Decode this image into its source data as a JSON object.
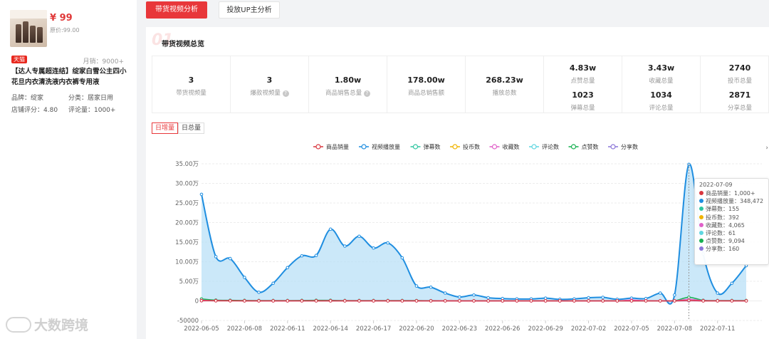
{
  "product": {
    "price": "¥ 99",
    "original_price": "原价:99.00",
    "shop_badge": "天猫",
    "monthly_sales": "月销：9000+",
    "title": "【达人专属超连结】绽家白雪公主四小花旦内衣清洗液内衣裤专用液",
    "brand": "品牌：绽家",
    "category": "分类：居家日用",
    "shop_rating": "店铺评分：4.80",
    "review_count": "评论量：1000+"
  },
  "tabs": [
    {
      "label": "带货视频分析",
      "active": true
    },
    {
      "label": "投放UP主分析",
      "active": false
    }
  ],
  "panel": {
    "section_mark": "01",
    "title": "带货视频总览"
  },
  "stats": [
    {
      "value": "3",
      "label": "带货视频量",
      "help": false
    },
    {
      "value": "3",
      "label": "爆款视频量",
      "help": true
    },
    {
      "value": "1.80w",
      "label": "商品销售总量",
      "help": true
    },
    {
      "value": "178.00w",
      "label": "商品总销售额",
      "help": false
    },
    {
      "value": "268.23w",
      "label": "播放总数",
      "help": false
    }
  ],
  "stats_double": [
    {
      "value1": "4.83w",
      "label1": "点赞总量",
      "value2": "1023",
      "label2": "弹幕总量"
    },
    {
      "value1": "3.43w",
      "label1": "收藏总量",
      "value2": "1034",
      "label2": "评论总量"
    },
    {
      "value1": "2740",
      "label1": "投币总量",
      "value2": "2871",
      "label2": "分享总量"
    }
  ],
  "toggles": {
    "daily": "日增量",
    "total": "日总量"
  },
  "chart_data": {
    "type": "line",
    "legend": [
      {
        "name": "商品销量",
        "color": "#d9363e"
      },
      {
        "name": "视频播放量",
        "color": "#1f8ee0"
      },
      {
        "name": "弹幕数",
        "color": "#2fc5a0"
      },
      {
        "name": "投币数",
        "color": "#f0b400"
      },
      {
        "name": "收藏数",
        "color": "#e060c8"
      },
      {
        "name": "评论数",
        "color": "#5fd6e0"
      },
      {
        "name": "点赞数",
        "color": "#16b050"
      },
      {
        "name": "分享数",
        "color": "#8b76d8"
      }
    ],
    "y_ticks": [
      "35.00万",
      "30.00万",
      "25.00万",
      "20.00万",
      "15.00万",
      "10.00万",
      "5.00万",
      "0",
      "-50000"
    ],
    "ylim": [
      -50000,
      350000
    ],
    "x_tick_labels": [
      "2022-06-05",
      "2022-06-08",
      "2022-06-11",
      "2022-06-14",
      "2022-06-17",
      "2022-06-20",
      "2022-06-23",
      "2022-06-26",
      "2022-06-29",
      "2022-07-02",
      "2022-07-05",
      "2022-07-08",
      "2022-07-11"
    ],
    "x": [
      "2022-06-05",
      "2022-06-06",
      "2022-06-07",
      "2022-06-08",
      "2022-06-09",
      "2022-06-10",
      "2022-06-11",
      "2022-06-12",
      "2022-06-13",
      "2022-06-14",
      "2022-06-15",
      "2022-06-16",
      "2022-06-17",
      "2022-06-18",
      "2022-06-19",
      "2022-06-20",
      "2022-06-21",
      "2022-06-22",
      "2022-06-23",
      "2022-06-24",
      "2022-06-25",
      "2022-06-26",
      "2022-06-27",
      "2022-06-28",
      "2022-06-29",
      "2022-06-30",
      "2022-07-01",
      "2022-07-02",
      "2022-07-03",
      "2022-07-04",
      "2022-07-05",
      "2022-07-06",
      "2022-07-07",
      "2022-07-08",
      "2022-07-09",
      "2022-07-10",
      "2022-07-11",
      "2022-07-12",
      "2022-07-13"
    ],
    "series": [
      {
        "name": "视频播放量",
        "color": "#1f8ee0",
        "fill": true,
        "values": [
          272000,
          113000,
          108000,
          60000,
          22000,
          45000,
          85000,
          115000,
          116000,
          183000,
          140000,
          165000,
          135000,
          148000,
          110000,
          38000,
          35000,
          20000,
          10000,
          15000,
          8000,
          6000,
          5000,
          5000,
          7000,
          4000,
          5000,
          8000,
          9000,
          4000,
          7000,
          6000,
          20000,
          15000,
          348472,
          120000,
          20000,
          45000,
          90000
        ]
      },
      {
        "name": "点赞数",
        "color": "#16b050",
        "values": [
          5000,
          2000,
          1500,
          1200,
          1000,
          1000,
          1000,
          1200,
          1500,
          1500,
          1000,
          1000,
          1000,
          1000,
          1000,
          800,
          600,
          500,
          400,
          400,
          300,
          300,
          300,
          300,
          300,
          300,
          300,
          300,
          300,
          300,
          300,
          300,
          300,
          500,
          9094,
          1500,
          1000,
          1000,
          1000
        ]
      },
      {
        "name": "分享数",
        "color": "#8b76d8",
        "values": [
          300,
          200,
          200,
          100,
          100,
          100,
          100,
          100,
          100,
          100,
          100,
          100,
          100,
          100,
          100,
          50,
          50,
          50,
          50,
          50,
          50,
          50,
          50,
          50,
          50,
          50,
          50,
          50,
          50,
          50,
          50,
          50,
          50,
          50,
          160,
          50,
          50,
          50,
          50
        ]
      },
      {
        "name": "收藏数",
        "color": "#e060c8",
        "values": [
          1500,
          800,
          600,
          400,
          300,
          300,
          300,
          400,
          500,
          600,
          400,
          400,
          400,
          400,
          300,
          200,
          200,
          150,
          100,
          100,
          100,
          100,
          100,
          100,
          100,
          100,
          100,
          100,
          100,
          100,
          2000,
          400,
          200,
          300,
          4065,
          800,
          500,
          300,
          300
        ]
      },
      {
        "name": "商品销量",
        "color": "#d9363e",
        "values": [
          500,
          300,
          200,
          100,
          100,
          100,
          100,
          100,
          100,
          100,
          100,
          100,
          100,
          100,
          100,
          50,
          50,
          50,
          50,
          50,
          50,
          50,
          50,
          50,
          50,
          50,
          50,
          50,
          50,
          50,
          50,
          50,
          50,
          50,
          1000,
          100,
          50,
          50,
          50
        ]
      }
    ]
  },
  "tooltip": {
    "date": "2022-07-09",
    "rows": [
      {
        "label": "商品销量：1,000+",
        "color": "#d9363e"
      },
      {
        "label": "视频播放量：348,472",
        "color": "#1f8ee0"
      },
      {
        "label": "弹幕数：155",
        "color": "#2fc5a0"
      },
      {
        "label": "投币数：392",
        "color": "#f0b400"
      },
      {
        "label": "收藏数：4,065",
        "color": "#e060c8"
      },
      {
        "label": "评论数：61",
        "color": "#5fd6e0"
      },
      {
        "label": "点赞数：9,094",
        "color": "#16b050"
      },
      {
        "label": "分享数：160",
        "color": "#8b76d8"
      }
    ]
  },
  "watermark": "大数跨境"
}
